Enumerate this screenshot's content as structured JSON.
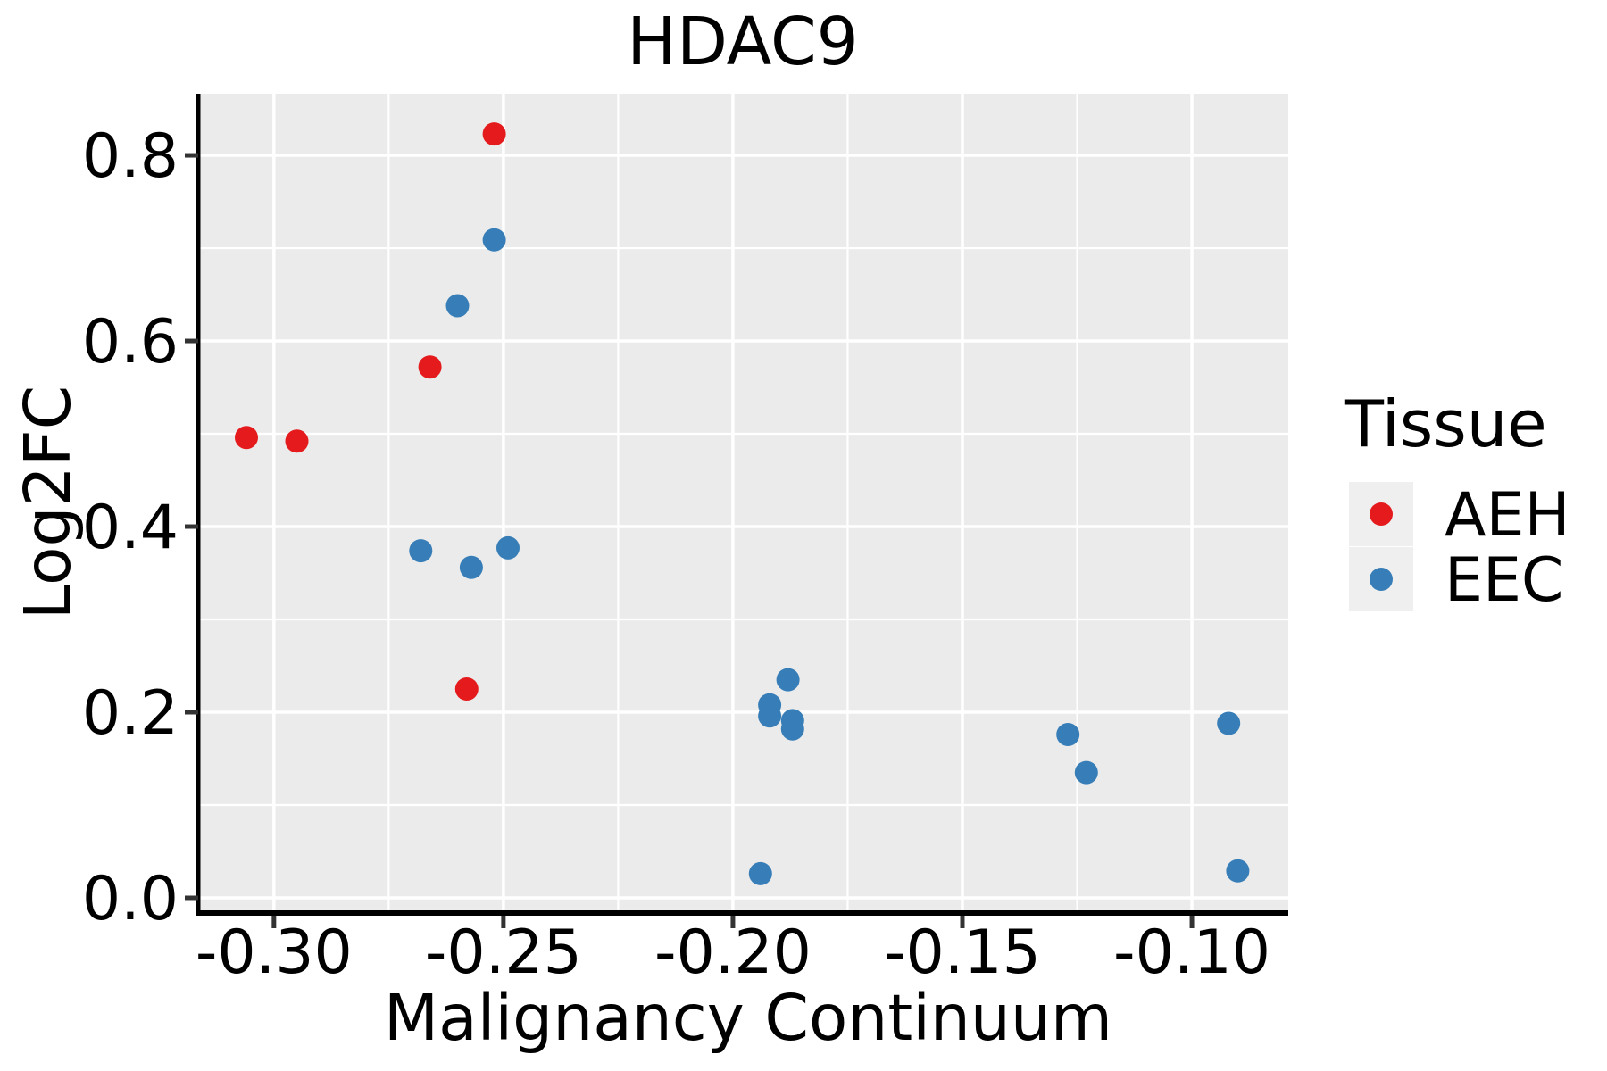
{
  "chart_data": {
    "type": "scatter",
    "title": "HDAC9",
    "xlabel": "Malignancy Continuum",
    "ylabel": "Log2FC",
    "panel_bg": "#EBEBEB",
    "grid_color": "#FFFFFF",
    "axis_color": "#000000",
    "tick_color": "#333333",
    "legend_key_bg": "#EFEFEF",
    "xlim": [
      -0.3165,
      -0.079
    ],
    "ylim": [
      -0.0154,
      0.8664
    ],
    "grid": "on",
    "x_ticks": {
      "values": [
        -0.3,
        -0.25,
        -0.2,
        -0.15,
        -0.1
      ],
      "labels": [
        "-0.30",
        "-0.25",
        "-0.20",
        "-0.15",
        "-0.10"
      ]
    },
    "y_ticks": {
      "values": [
        0.0,
        0.2,
        0.4,
        0.6,
        0.8
      ],
      "labels": [
        "0.0",
        "0.2",
        "0.4",
        "0.6",
        "0.8"
      ]
    },
    "x_minor": [
      -0.275,
      -0.225,
      -0.175,
      -0.125
    ],
    "y_minor": [
      0.1,
      0.3,
      0.5,
      0.7
    ],
    "legend": {
      "title": "Tissue",
      "position": "right-center",
      "items": [
        {
          "label": "AEH",
          "color": "#E41A1C"
        },
        {
          "label": "EEC",
          "color": "#377EB8"
        }
      ]
    },
    "series": [
      {
        "name": "AEH",
        "color": "#E41A1C",
        "points": [
          [
            -0.252,
            0.823
          ],
          [
            -0.266,
            0.572
          ],
          [
            -0.306,
            0.496
          ],
          [
            -0.295,
            0.492
          ],
          [
            -0.258,
            0.225
          ]
        ]
      },
      {
        "name": "EEC",
        "color": "#377EB8",
        "points": [
          [
            -0.252,
            0.709
          ],
          [
            -0.26,
            0.638
          ],
          [
            -0.268,
            0.374
          ],
          [
            -0.249,
            0.377
          ],
          [
            -0.257,
            0.356
          ],
          [
            -0.188,
            0.235
          ],
          [
            -0.192,
            0.208
          ],
          [
            -0.192,
            0.196
          ],
          [
            -0.187,
            0.191
          ],
          [
            -0.187,
            0.182
          ],
          [
            -0.194,
            0.026
          ],
          [
            -0.127,
            0.176
          ],
          [
            -0.123,
            0.135
          ],
          [
            -0.092,
            0.188
          ],
          [
            -0.09,
            0.029
          ]
        ]
      }
    ]
  }
}
